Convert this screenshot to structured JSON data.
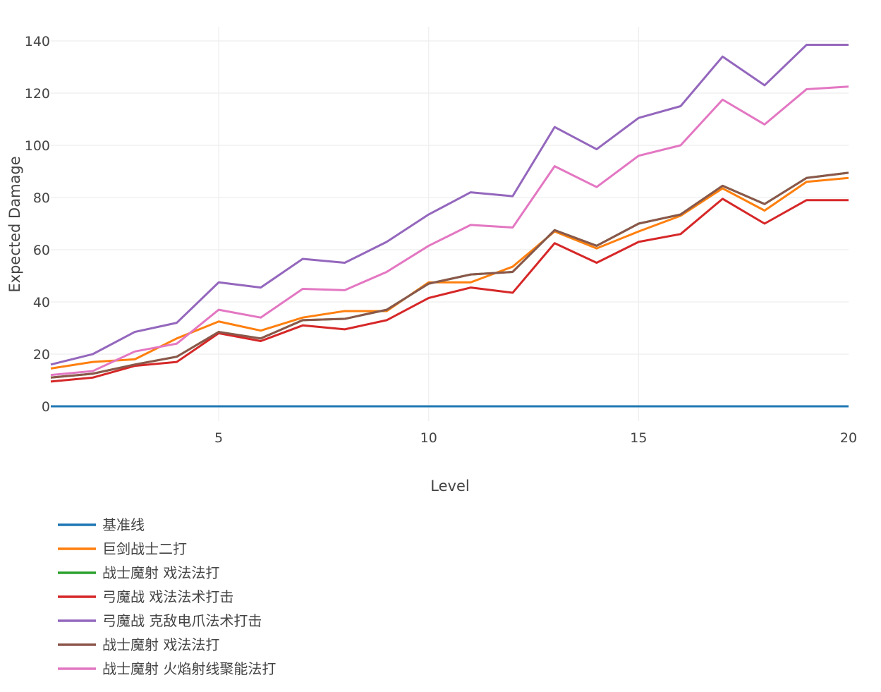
{
  "chart_data": {
    "type": "line",
    "title": "",
    "xlabel": "Level",
    "ylabel": "Expected Damage",
    "xlim": [
      1,
      20
    ],
    "ylim": [
      -5,
      146
    ],
    "xticks": [
      5,
      10,
      15,
      20
    ],
    "yticks": [
      0,
      20,
      40,
      60,
      80,
      100,
      120,
      140
    ],
    "grid": true,
    "legend_position": "bottom-left",
    "x": [
      1,
      2,
      3,
      4,
      5,
      6,
      7,
      8,
      9,
      10,
      11,
      12,
      13,
      14,
      15,
      16,
      17,
      18,
      19,
      20
    ],
    "series": [
      {
        "name": "基准线",
        "color": "#1f77b4",
        "values": [
          0,
          0,
          0,
          0,
          0,
          0,
          0,
          0,
          0,
          0,
          0,
          0,
          0,
          0,
          0,
          0,
          0,
          0,
          0,
          0
        ]
      },
      {
        "name": "巨剑战士二打",
        "color": "#ff7f0e",
        "values": [
          14.5,
          17,
          18,
          26,
          32.5,
          29,
          34,
          36.5,
          36.5,
          47.5,
          47.5,
          53.5,
          67,
          60.5,
          67,
          73,
          83.5,
          75,
          86,
          87.5
        ]
      },
      {
        "name": "战士魔射 戏法法打",
        "color": "#2ca02c",
        "values": [
          11,
          12.5,
          16,
          19,
          28.5,
          26,
          33,
          33.5,
          37,
          47,
          50.5,
          51.5,
          67.5,
          61.5,
          70,
          73.5,
          84.5,
          77.5,
          87.5,
          89.5
        ]
      },
      {
        "name": "弓魔战 戏法法术打击",
        "color": "#d62728",
        "values": [
          9.5,
          11,
          15.5,
          17,
          28,
          25,
          31,
          29.5,
          33,
          41.5,
          45.5,
          43.5,
          62.5,
          55,
          63,
          66,
          79.5,
          70,
          79,
          79
        ]
      },
      {
        "name": "弓魔战 克敌电爪法术打击",
        "color": "#9467bd",
        "values": [
          16,
          20,
          28.5,
          32,
          47.5,
          45.5,
          56.5,
          55,
          63,
          73.5,
          82,
          80.5,
          107,
          98.5,
          110.5,
          115,
          134,
          123,
          138.5,
          138.5
        ]
      },
      {
        "name": "战士魔射 戏法法打",
        "color": "#8c564b",
        "values": [
          11,
          12.5,
          16,
          19,
          28.5,
          26,
          33,
          33.5,
          37,
          47,
          50.5,
          51.5,
          67.5,
          61.5,
          70,
          73.5,
          84.5,
          77.5,
          87.5,
          89.5
        ]
      },
      {
        "name": "战士魔射 火焰射线聚能法打",
        "color": "#e377c2",
        "values": [
          12,
          13.5,
          21,
          24,
          37,
          34,
          45,
          44.5,
          51.5,
          61.5,
          69.5,
          68.5,
          92,
          84,
          96,
          100,
          117.5,
          108,
          121.5,
          122.5
        ]
      }
    ]
  }
}
